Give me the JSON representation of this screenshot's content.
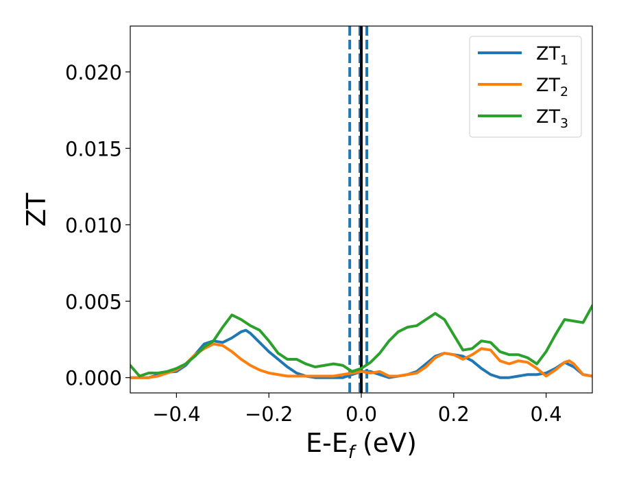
{
  "chart_data": {
    "type": "line",
    "xlabel_main": "E-E",
    "xlabel_sub": "f",
    "xlabel_unit": " (eV)",
    "ylabel": "ZT",
    "xlim": [
      -0.5,
      0.5
    ],
    "ylim": [
      -0.001,
      0.023
    ],
    "xticks": [
      -0.4,
      -0.2,
      0.0,
      0.2,
      0.4
    ],
    "xtick_labels": [
      "−0.4",
      "−0.2",
      "0.0",
      "0.2",
      "0.4"
    ],
    "yticks": [
      0.0,
      0.005,
      0.01,
      0.015,
      0.02
    ],
    "ytick_labels": [
      "0.000",
      "0.005",
      "0.010",
      "0.015",
      "0.020"
    ],
    "grid": false,
    "legend_position": "top-right",
    "vlines": [
      {
        "x": -0.025,
        "style": "dashed",
        "color": "#1f77b4"
      },
      {
        "x": -0.003,
        "style": "dashed",
        "color": "#1f77b4"
      },
      {
        "x": 0.012,
        "style": "dashed",
        "color": "#1f77b4"
      },
      {
        "x": 0.0,
        "style": "solid",
        "color": "#000000"
      }
    ],
    "series": [
      {
        "name_main": "ZT",
        "name_sub": "1",
        "color": "#1f77b4",
        "x": [
          -0.5,
          -0.48,
          -0.46,
          -0.44,
          -0.42,
          -0.4,
          -0.38,
          -0.36,
          -0.34,
          -0.32,
          -0.3,
          -0.28,
          -0.26,
          -0.25,
          -0.24,
          -0.22,
          -0.2,
          -0.18,
          -0.16,
          -0.14,
          -0.12,
          -0.1,
          -0.08,
          -0.06,
          -0.04,
          -0.02,
          0.0,
          0.02,
          0.04,
          0.06,
          0.08,
          0.1,
          0.12,
          0.14,
          0.16,
          0.18,
          0.2,
          0.22,
          0.24,
          0.26,
          0.28,
          0.3,
          0.32,
          0.34,
          0.36,
          0.38,
          0.4,
          0.42,
          0.44,
          0.46,
          0.48,
          0.5
        ],
        "y": [
          0.0,
          0.0,
          0.0,
          0.00018,
          0.00035,
          0.0004,
          0.0008,
          0.0015,
          0.0022,
          0.0024,
          0.0023,
          0.0026,
          0.003,
          0.0031,
          0.0029,
          0.0023,
          0.0017,
          0.0012,
          0.0007,
          0.0003,
          0.0001,
          0.0,
          0.0,
          0.0,
          0.0,
          0.0002,
          0.0004,
          0.0004,
          0.0002,
          0.0,
          0.0001,
          0.0002,
          0.0004,
          0.0009,
          0.0014,
          0.0016,
          0.0015,
          0.0014,
          0.0011,
          0.0006,
          0.0002,
          0.0,
          0.0,
          0.0001,
          0.0002,
          0.0002,
          0.0003,
          0.0006,
          0.001,
          0.0007,
          0.0002,
          0.0001
        ]
      },
      {
        "name_main": "ZT",
        "name_sub": "2",
        "color": "#ff7f0e",
        "x": [
          -0.5,
          -0.48,
          -0.46,
          -0.44,
          -0.42,
          -0.4,
          -0.38,
          -0.36,
          -0.34,
          -0.32,
          -0.3,
          -0.28,
          -0.26,
          -0.24,
          -0.22,
          -0.2,
          -0.18,
          -0.16,
          -0.14,
          -0.12,
          -0.1,
          -0.08,
          -0.06,
          -0.04,
          -0.02,
          0.0,
          0.02,
          0.04,
          0.06,
          0.08,
          0.1,
          0.12,
          0.14,
          0.16,
          0.18,
          0.2,
          0.22,
          0.24,
          0.26,
          0.28,
          0.3,
          0.32,
          0.34,
          0.36,
          0.38,
          0.4,
          0.42,
          0.44,
          0.45,
          0.46,
          0.48,
          0.5
        ],
        "y": [
          0.0,
          0.0,
          0.0,
          0.0001,
          0.0003,
          0.0005,
          0.0009,
          0.0015,
          0.0019,
          0.0022,
          0.0021,
          0.0017,
          0.0012,
          0.0008,
          0.0005,
          0.0003,
          0.0002,
          0.0001,
          0.0001,
          0.0001,
          0.0001,
          0.0001,
          0.0001,
          0.0002,
          0.0003,
          0.0004,
          0.0003,
          0.0004,
          0.0001,
          0.0001,
          0.0002,
          0.0003,
          0.0007,
          0.0013,
          0.0016,
          0.0015,
          0.0012,
          0.0015,
          0.0019,
          0.0018,
          0.0011,
          0.0009,
          0.0011,
          0.001,
          0.0006,
          0.0001,
          0.0005,
          0.001,
          0.0011,
          0.0009,
          0.0002,
          0.0001
        ]
      },
      {
        "name_main": "ZT",
        "name_sub": "3",
        "color": "#2ca02c",
        "x": [
          -0.5,
          -0.48,
          -0.46,
          -0.44,
          -0.42,
          -0.4,
          -0.38,
          -0.36,
          -0.34,
          -0.32,
          -0.3,
          -0.28,
          -0.26,
          -0.24,
          -0.22,
          -0.2,
          -0.18,
          -0.16,
          -0.14,
          -0.12,
          -0.1,
          -0.08,
          -0.06,
          -0.04,
          -0.02,
          0.0,
          0.02,
          0.04,
          0.06,
          0.08,
          0.1,
          0.12,
          0.14,
          0.16,
          0.18,
          0.2,
          0.22,
          0.24,
          0.26,
          0.28,
          0.3,
          0.32,
          0.34,
          0.36,
          0.38,
          0.4,
          0.42,
          0.44,
          0.46,
          0.48,
          0.5
        ],
        "y": [
          0.0008,
          0.0001,
          0.0003,
          0.0003,
          0.0004,
          0.0006,
          0.0009,
          0.0014,
          0.002,
          0.0024,
          0.0033,
          0.0041,
          0.0038,
          0.0034,
          0.0031,
          0.0024,
          0.0016,
          0.0012,
          0.0012,
          0.0009,
          0.0007,
          0.0008,
          0.0009,
          0.0008,
          0.0004,
          0.0006,
          0.001,
          0.0016,
          0.0024,
          0.003,
          0.0033,
          0.0034,
          0.0038,
          0.0042,
          0.0038,
          0.0028,
          0.0018,
          0.0019,
          0.0024,
          0.0023,
          0.0017,
          0.0015,
          0.0015,
          0.0013,
          0.0009,
          0.0017,
          0.0028,
          0.0038,
          0.0037,
          0.0036,
          0.0047
        ]
      }
    ]
  }
}
